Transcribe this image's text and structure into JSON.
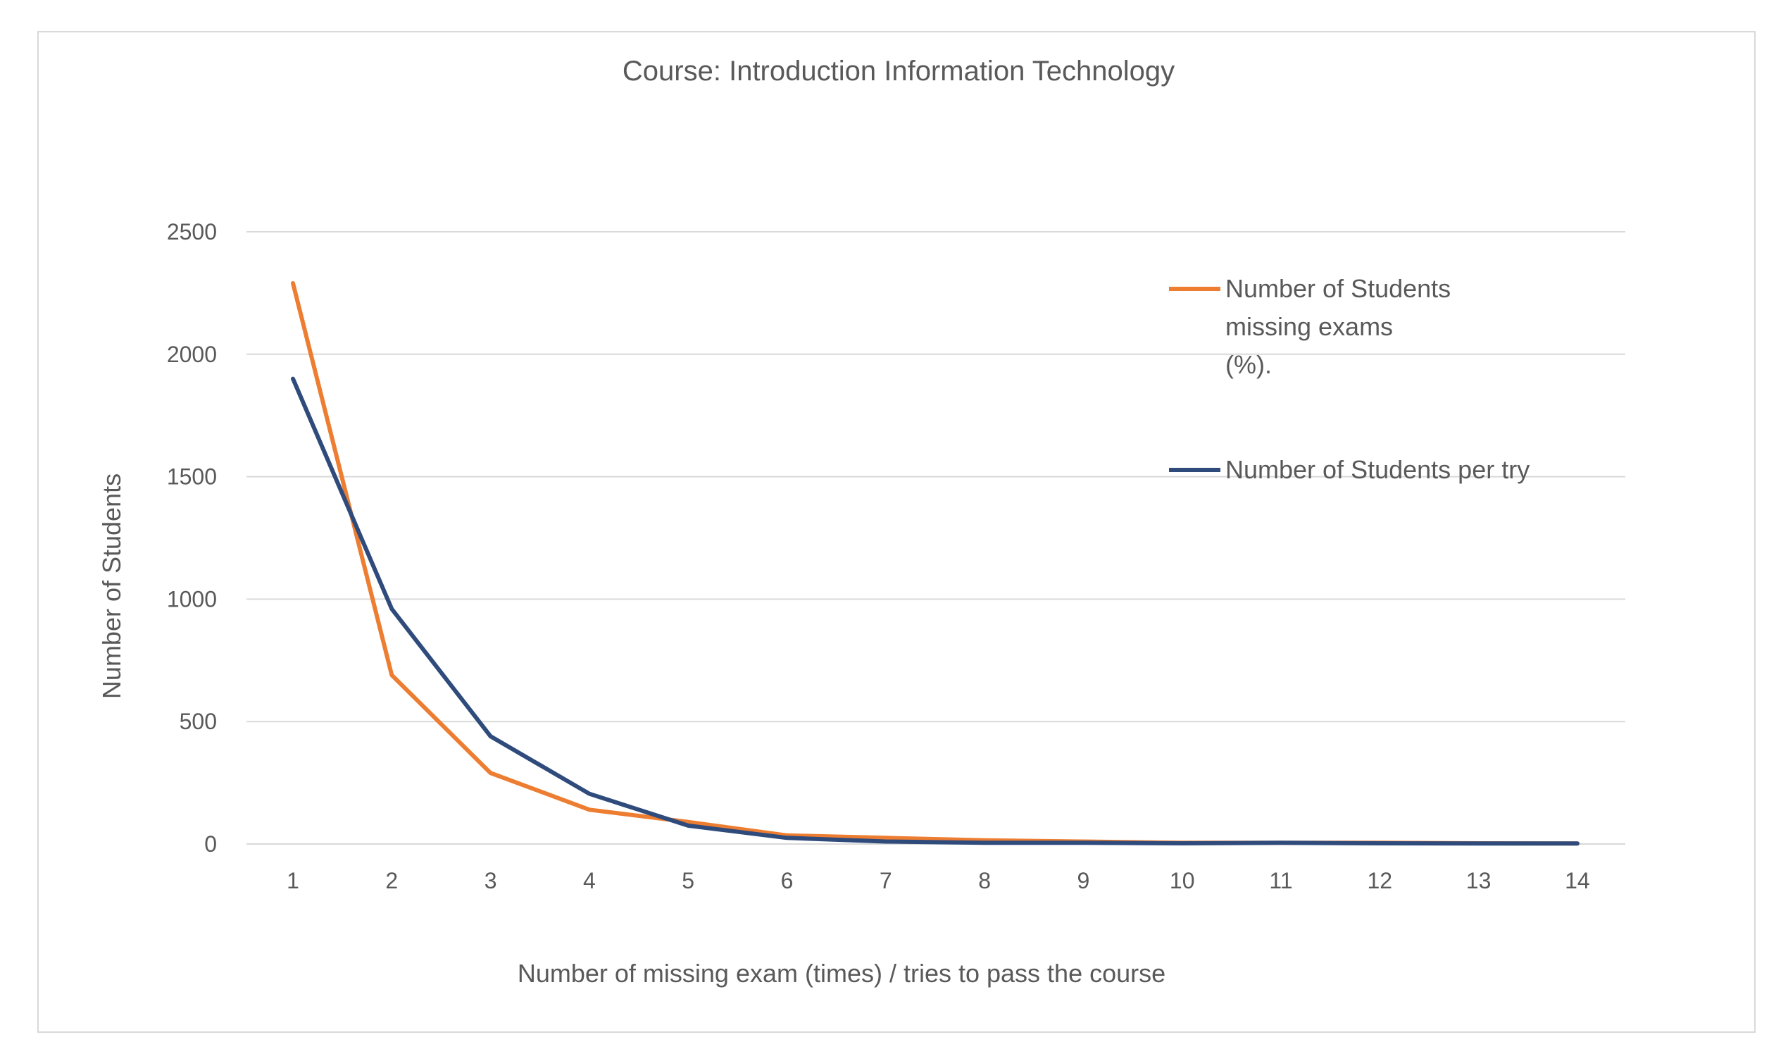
{
  "chart_data": {
    "type": "line",
    "title": "Course: Introduction Information Technology",
    "xlabel": "Number of missing exam (times) / tries to pass the course",
    "ylabel": "Number of Students",
    "x": [
      1,
      2,
      3,
      4,
      5,
      6,
      7,
      8,
      9,
      10,
      11,
      12,
      13,
      14
    ],
    "ylim": [
      0,
      2500
    ],
    "yticks": [
      0,
      500,
      1000,
      1500,
      2000,
      2500
    ],
    "grid": true,
    "legend_position": "top-right",
    "series": [
      {
        "name": "Number of Students missing exams (%).",
        "legend_lines": [
          "Number of Students",
          "missing exams",
          "(%)."
        ],
        "color": "#ed7d31",
        "values": [
          2290,
          690,
          290,
          140,
          90,
          35,
          25,
          15,
          10,
          5,
          5,
          5,
          3,
          2
        ]
      },
      {
        "name": "Number of Students per try",
        "legend_lines": [
          "Number of Students per try"
        ],
        "color": "#2f4b7c",
        "values": [
          1900,
          960,
          440,
          205,
          75,
          25,
          10,
          5,
          5,
          3,
          5,
          3,
          2,
          2
        ]
      }
    ]
  }
}
